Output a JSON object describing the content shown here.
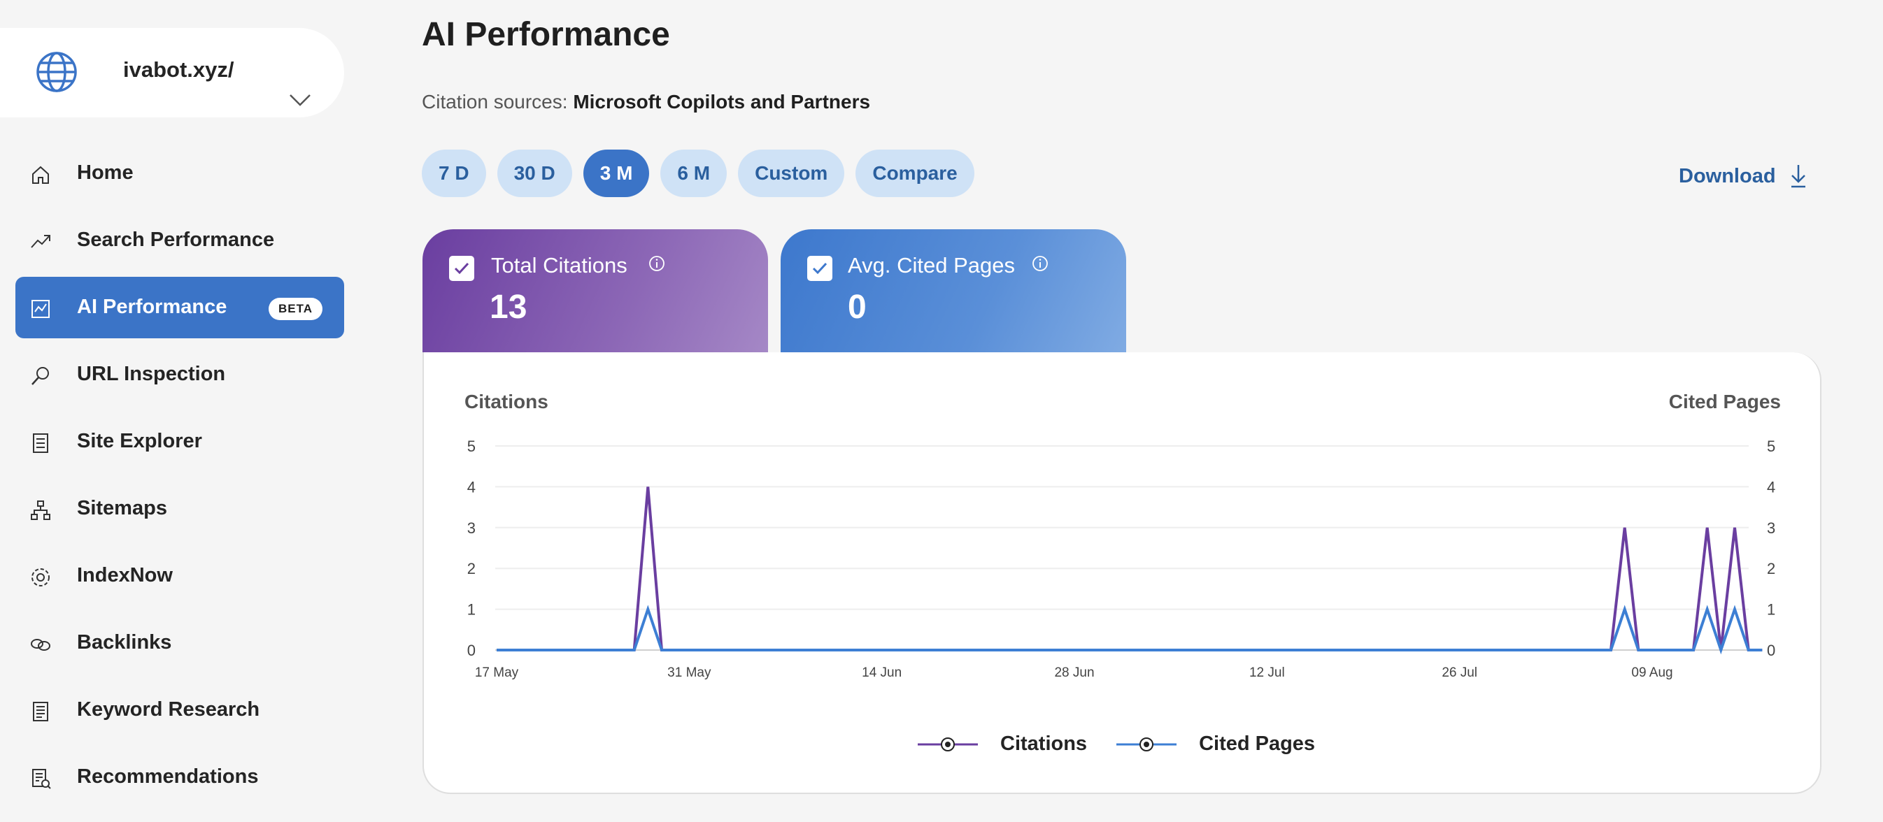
{
  "site": {
    "name": "ivabot.xyz/",
    "globe_icon": "globe-icon",
    "accent": "#3b74c7"
  },
  "sidebar": {
    "items": [
      {
        "label": "Home",
        "icon": "home-icon"
      },
      {
        "label": "Search Performance",
        "icon": "trend-up-icon"
      },
      {
        "label": "AI Performance",
        "icon": "ai-chart-icon",
        "badge": "BETA",
        "active": true
      },
      {
        "label": "URL Inspection",
        "icon": "magnifier-icon"
      },
      {
        "label": "Site Explorer",
        "icon": "checklist-icon"
      },
      {
        "label": "Sitemaps",
        "icon": "sitemap-icon"
      },
      {
        "label": "IndexNow",
        "icon": "gear-icon"
      },
      {
        "label": "Backlinks",
        "icon": "link-icon"
      },
      {
        "label": "Keyword Research",
        "icon": "document-icon"
      },
      {
        "label": "Recommendations",
        "icon": "report-icon"
      }
    ]
  },
  "main": {
    "title": "AI Performance",
    "sources_label": "Citation sources:",
    "sources_value": "Microsoft Copilots and Partners",
    "ranges": [
      "7 D",
      "30 D",
      "3 M",
      "6 M",
      "Custom",
      "Compare"
    ],
    "active_range": "3 M",
    "download_label": "Download"
  },
  "metrics": {
    "total_citations": {
      "label": "Total Citations",
      "value": "13",
      "checked": true,
      "color": "#6a3ea0"
    },
    "avg_cited_pages": {
      "label": "Avg. Cited Pages",
      "value": "0",
      "checked": true,
      "color": "#3d78cd"
    }
  },
  "chart_data": {
    "type": "line",
    "left_axis_label": "Citations",
    "right_axis_label": "Cited Pages",
    "y_ticks": [
      0,
      1,
      2,
      3,
      4,
      5
    ],
    "ylim": [
      0,
      5
    ],
    "x_tick_labels": [
      "17 May",
      "31 May",
      "14 Jun",
      "28 Jun",
      "12 Jul",
      "26 Jul",
      "09 Aug"
    ],
    "grid": true,
    "legend_position": "bottom-center",
    "series": [
      {
        "name": "Citations",
        "color": "#6a3ea0",
        "points": [
          [
            "17 May",
            0
          ],
          [
            "27 May",
            0
          ],
          [
            "28 May",
            4
          ],
          [
            "29 May",
            0
          ],
          [
            "06 Aug",
            0
          ],
          [
            "07 Aug",
            3
          ],
          [
            "08 Aug",
            0
          ],
          [
            "12 Aug",
            0
          ],
          [
            "13 Aug",
            3
          ],
          [
            "14 Aug",
            0
          ],
          [
            "15 Aug",
            3
          ],
          [
            "16 Aug",
            0
          ],
          [
            "17 Aug",
            0
          ]
        ]
      },
      {
        "name": "Cited Pages",
        "color": "#3d7fd4",
        "points": [
          [
            "17 May",
            0
          ],
          [
            "27 May",
            0
          ],
          [
            "28 May",
            1
          ],
          [
            "29 May",
            0
          ],
          [
            "06 Aug",
            0
          ],
          [
            "07 Aug",
            1
          ],
          [
            "08 Aug",
            0
          ],
          [
            "12 Aug",
            0
          ],
          [
            "13 Aug",
            1
          ],
          [
            "14 Aug",
            0
          ],
          [
            "15 Aug",
            1
          ],
          [
            "16 Aug",
            0
          ],
          [
            "17 Aug",
            0
          ]
        ]
      }
    ]
  }
}
